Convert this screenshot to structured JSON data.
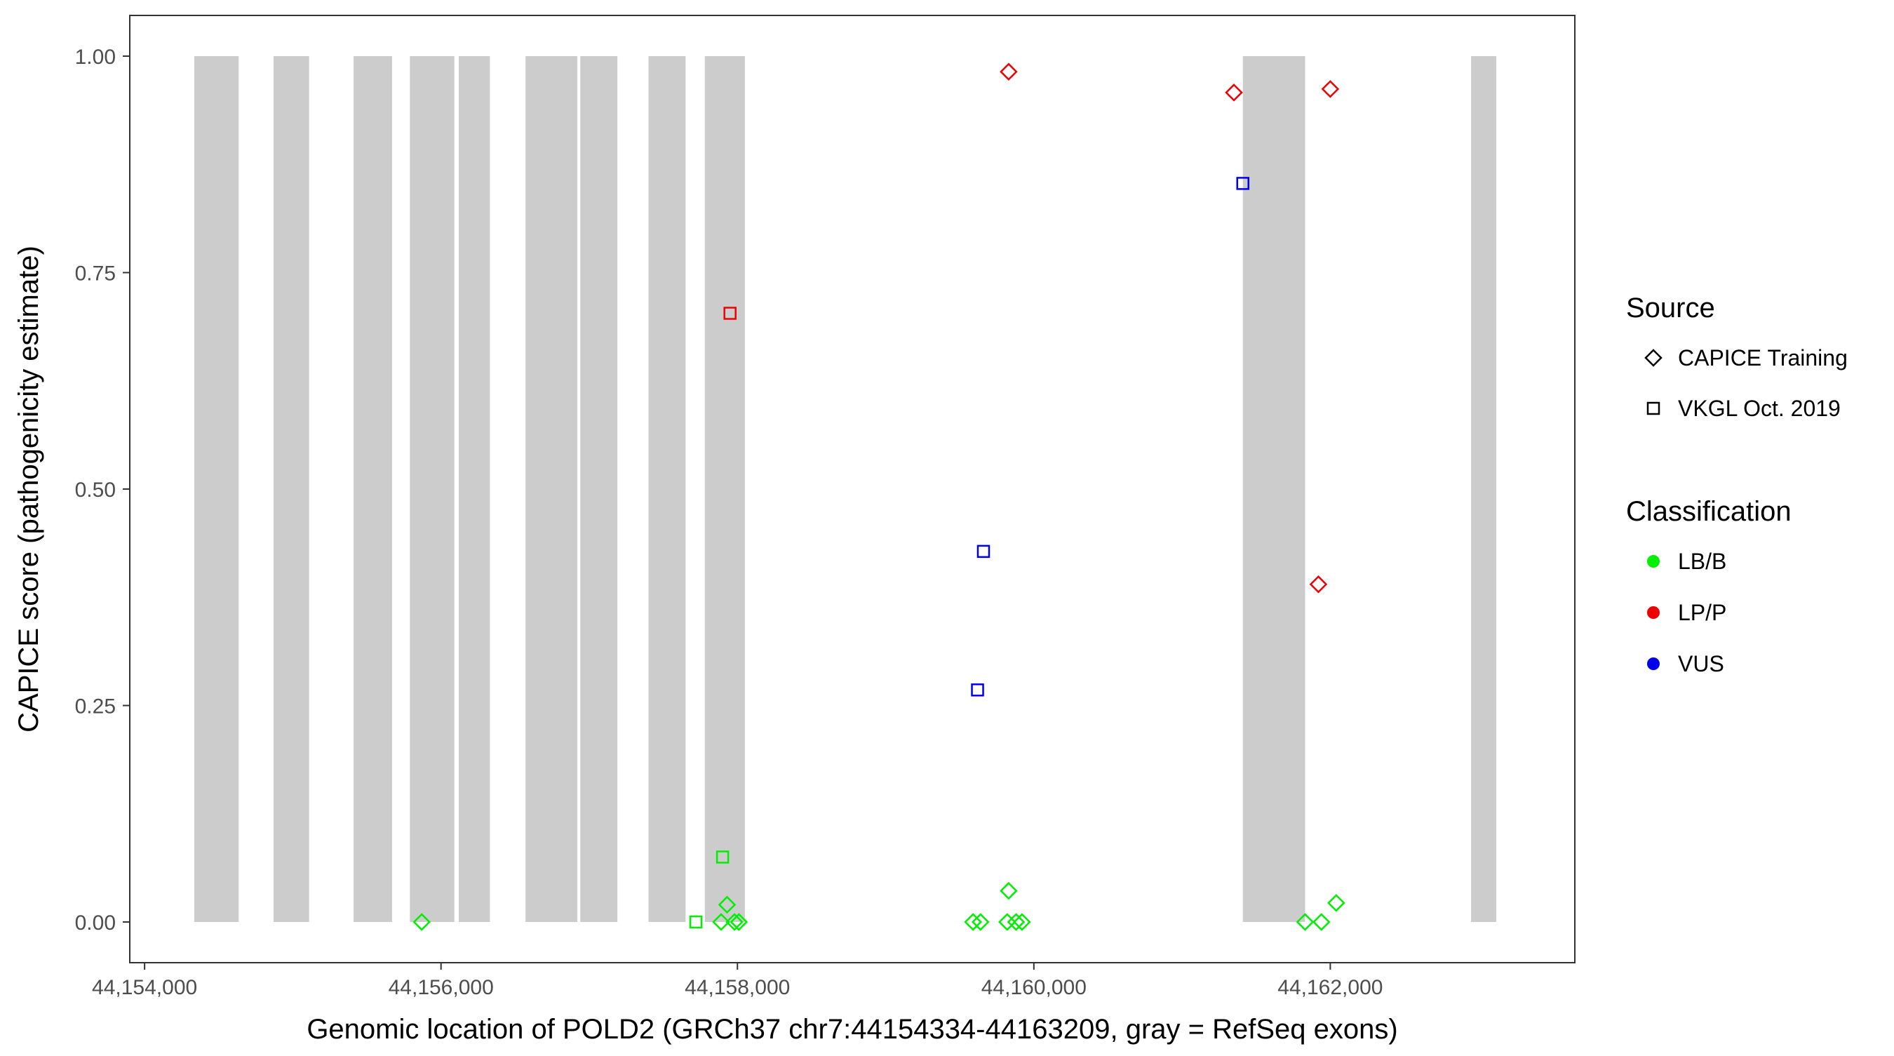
{
  "chart_data": {
    "type": "scatter",
    "xlabel": "Genomic location of POLD2 (GRCh37 chr7:44154334-44163209, gray = RefSeq exons)",
    "ylabel": "CAPICE score (pathogenicity estimate)",
    "xlim": [
      44153900,
      44163650
    ],
    "ylim": [
      -0.047,
      1.047
    ],
    "x_ticks": [
      44154000,
      44156000,
      44158000,
      44160000,
      44162000
    ],
    "x_tick_labels": [
      "44,154,000",
      "44,156,000",
      "44,158,000",
      "44,160,000",
      "44,162,000"
    ],
    "y_ticks": [
      0,
      0.25,
      0.5,
      0.75,
      1.0
    ],
    "y_tick_labels": [
      "0.00",
      "0.25",
      "0.50",
      "0.75",
      "1.00"
    ],
    "grid": false,
    "legend_position": "right",
    "exons": [
      [
        44154335,
        44154635
      ],
      [
        44154870,
        44155110
      ],
      [
        44155410,
        44155670
      ],
      [
        44155790,
        44156090
      ],
      [
        44156120,
        44156330
      ],
      [
        44156570,
        44156920
      ],
      [
        44156940,
        44157190
      ],
      [
        44157400,
        44157650
      ],
      [
        44157780,
        44158050
      ],
      [
        44161410,
        44161830
      ],
      [
        44162950,
        44163120
      ]
    ],
    "legends": {
      "source": {
        "title": "Source",
        "items": [
          {
            "label": "CAPICE Training",
            "shape": "diamond"
          },
          {
            "label": "VKGL Oct. 2019",
            "shape": "square"
          }
        ]
      },
      "classification": {
        "title": "Classification",
        "items": [
          {
            "label": "LB/B",
            "color": "#00ee00"
          },
          {
            "label": "LP/P",
            "color": "#ee0000"
          },
          {
            "label": "VUS",
            "color": "#0000ee"
          }
        ]
      }
    },
    "points": [
      {
        "x": 44155870,
        "y": 0.0,
        "source": "CAPICE Training",
        "class": "LB/B"
      },
      {
        "x": 44157930,
        "y": 0.02,
        "source": "CAPICE Training",
        "class": "LB/B"
      },
      {
        "x": 44157890,
        "y": 0.0,
        "source": "CAPICE Training",
        "class": "LB/B"
      },
      {
        "x": 44157980,
        "y": 0.0,
        "source": "CAPICE Training",
        "class": "LB/B"
      },
      {
        "x": 44158010,
        "y": 0.0,
        "source": "CAPICE Training",
        "class": "LB/B"
      },
      {
        "x": 44157720,
        "y": 0.0,
        "source": "VKGL Oct. 2019",
        "class": "LB/B"
      },
      {
        "x": 44157900,
        "y": 0.075,
        "source": "VKGL Oct. 2019",
        "class": "LB/B"
      },
      {
        "x": 44157950,
        "y": 0.703,
        "source": "VKGL Oct. 2019",
        "class": "LP/P"
      },
      {
        "x": 44159830,
        "y": 0.982,
        "source": "CAPICE Training",
        "class": "LP/P"
      },
      {
        "x": 44159830,
        "y": 0.036,
        "source": "CAPICE Training",
        "class": "LB/B"
      },
      {
        "x": 44159590,
        "y": 0.0,
        "source": "CAPICE Training",
        "class": "LB/B"
      },
      {
        "x": 44159640,
        "y": 0.0,
        "source": "CAPICE Training",
        "class": "LB/B"
      },
      {
        "x": 44159820,
        "y": 0.0,
        "source": "CAPICE Training",
        "class": "LB/B"
      },
      {
        "x": 44159880,
        "y": 0.0,
        "source": "CAPICE Training",
        "class": "LB/B"
      },
      {
        "x": 44159920,
        "y": 0.0,
        "source": "CAPICE Training",
        "class": "LB/B"
      },
      {
        "x": 44159660,
        "y": 0.428,
        "source": "VKGL Oct. 2019",
        "class": "VUS"
      },
      {
        "x": 44159620,
        "y": 0.268,
        "source": "VKGL Oct. 2019",
        "class": "VUS"
      },
      {
        "x": 44161350,
        "y": 0.958,
        "source": "CAPICE Training",
        "class": "LP/P"
      },
      {
        "x": 44161410,
        "y": 0.853,
        "source": "VKGL Oct. 2019",
        "class": "VUS"
      },
      {
        "x": 44162000,
        "y": 0.962,
        "source": "CAPICE Training",
        "class": "LP/P"
      },
      {
        "x": 44161920,
        "y": 0.39,
        "source": "CAPICE Training",
        "class": "LP/P"
      },
      {
        "x": 44161830,
        "y": 0.0,
        "source": "CAPICE Training",
        "class": "LB/B"
      },
      {
        "x": 44161940,
        "y": 0.0,
        "source": "CAPICE Training",
        "class": "LB/B"
      },
      {
        "x": 44162040,
        "y": 0.022,
        "source": "CAPICE Training",
        "class": "LB/B"
      }
    ]
  }
}
